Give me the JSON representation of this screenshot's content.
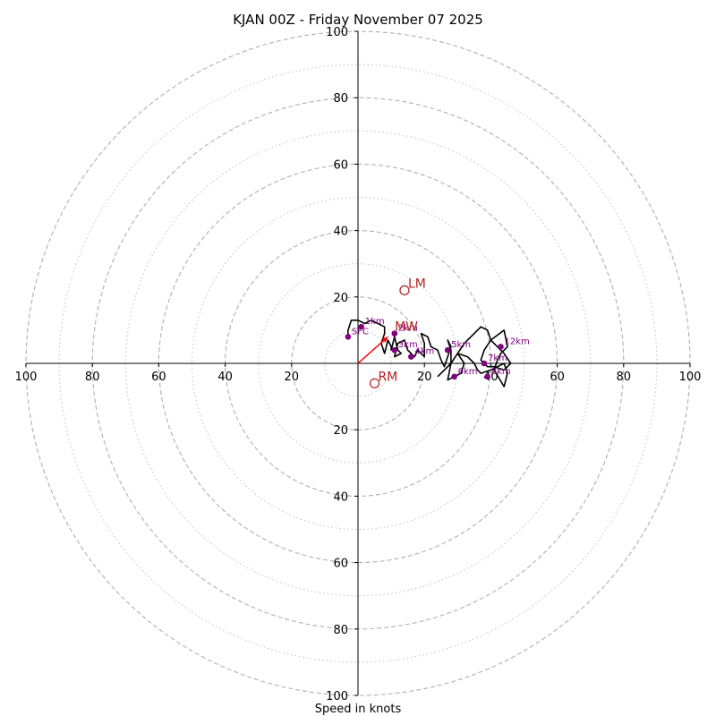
{
  "chart_data": {
    "type": "hodograph",
    "title": "KJAN 00Z - Friday November 07 2025",
    "xlabel": "Speed in knots",
    "xlim": [
      -100,
      100
    ],
    "ylim": [
      -100,
      100
    ],
    "ring_major": [
      20,
      40,
      60,
      80,
      100
    ],
    "ring_minor": [
      10,
      30,
      50,
      70,
      90
    ],
    "axis_ticks": [
      20,
      40,
      60,
      80,
      100
    ],
    "colors": {
      "hodo_line": "#000000",
      "height_marker": "#800080",
      "motion_label": "#b22222",
      "mean_wind_vector": "#ff0000",
      "ring": "#b0b0b0"
    },
    "hodograph_trace": [
      [
        -3,
        8
      ],
      [
        -3,
        10
      ],
      [
        -2,
        13
      ],
      [
        0,
        13
      ],
      [
        2,
        12
      ],
      [
        4,
        13
      ],
      [
        6,
        12
      ],
      [
        8,
        11
      ],
      [
        8,
        9
      ],
      [
        7,
        6
      ],
      [
        8,
        3
      ],
      [
        9,
        7
      ],
      [
        10,
        5
      ],
      [
        10,
        4
      ],
      [
        11,
        8
      ],
      [
        12,
        4
      ],
      [
        13,
        3
      ],
      [
        11,
        2
      ],
      [
        12,
        6
      ],
      [
        14,
        7
      ],
      [
        15,
        4
      ],
      [
        17,
        2
      ],
      [
        18,
        4
      ],
      [
        20,
        2
      ],
      [
        20,
        6
      ],
      [
        19,
        9
      ],
      [
        21,
        8
      ],
      [
        22,
        5
      ],
      [
        24,
        4
      ],
      [
        25,
        1
      ],
      [
        26,
        -1
      ],
      [
        27,
        2
      ],
      [
        28,
        5
      ],
      [
        27,
        7
      ],
      [
        28,
        4
      ],
      [
        28,
        0
      ],
      [
        27,
        -5
      ],
      [
        29,
        -4
      ],
      [
        31,
        -3
      ],
      [
        32,
        0
      ],
      [
        30,
        3
      ],
      [
        33,
        2
      ],
      [
        35,
        0
      ],
      [
        36,
        -2
      ],
      [
        37,
        -3
      ],
      [
        40,
        -2
      ],
      [
        42,
        -1
      ],
      [
        44,
        0
      ],
      [
        45,
        -3
      ],
      [
        44,
        -7
      ],
      [
        41,
        -2
      ],
      [
        42,
        1
      ],
      [
        43,
        3
      ],
      [
        45,
        5
      ],
      [
        44,
        10
      ],
      [
        40,
        7
      ],
      [
        38,
        4
      ],
      [
        37,
        1
      ],
      [
        39,
        -1
      ],
      [
        41,
        -1
      ],
      [
        44,
        -2
      ],
      [
        46,
        0
      ],
      [
        44,
        3
      ],
      [
        40,
        7
      ],
      [
        39,
        10
      ],
      [
        37,
        11
      ],
      [
        35,
        9
      ],
      [
        32,
        6
      ],
      [
        30,
        3
      ],
      [
        28,
        0
      ],
      [
        26,
        -2
      ],
      [
        24,
        -4
      ]
    ],
    "height_markers": [
      {
        "label": "SFC",
        "x": -3,
        "y": 8
      },
      {
        "label": "1km",
        "x": 1,
        "y": 11
      },
      {
        "label": "2km",
        "x": 11,
        "y": 9
      },
      {
        "label": "3km",
        "x": 11,
        "y": 4
      },
      {
        "label": "4km",
        "x": 16,
        "y": 2
      },
      {
        "label": "5km",
        "x": 27,
        "y": 4
      },
      {
        "label": "6km",
        "x": 29,
        "y": -4
      },
      {
        "label": "7km",
        "x": 38,
        "y": 0
      },
      {
        "label": "8km",
        "x": 39,
        "y": -4
      },
      {
        "label": "12km",
        "x": 43,
        "y": 5
      }
    ],
    "storm_motions": [
      {
        "label": "LM",
        "x": 14,
        "y": 22
      },
      {
        "label": "RM",
        "x": 5,
        "y": -6
      },
      {
        "label": "MW",
        "x": 10,
        "y": 9
      }
    ],
    "mean_wind_vector": {
      "x": 9,
      "y": 8
    }
  }
}
